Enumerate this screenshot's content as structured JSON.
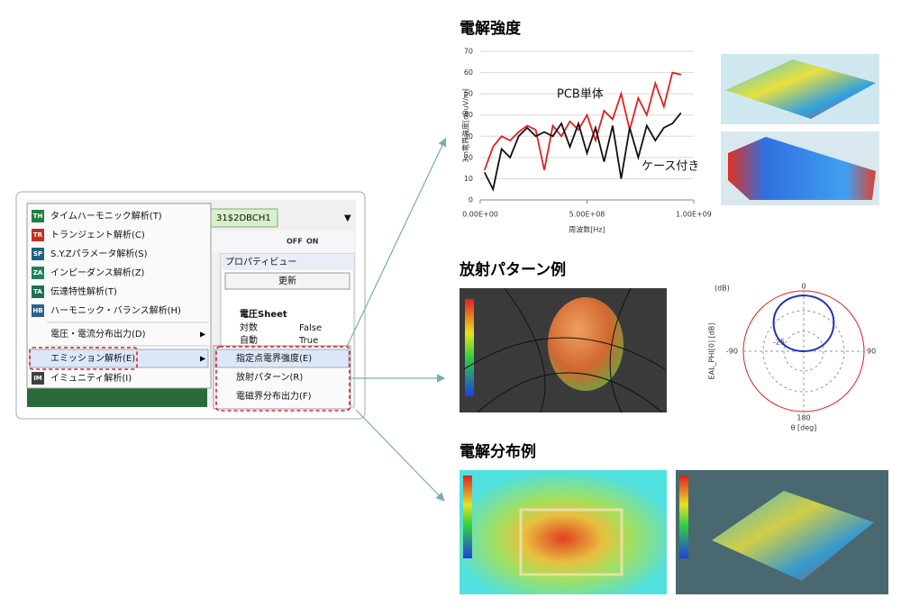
{
  "sections": {
    "field_strength": "電解強度",
    "radiation": "放射パターン例",
    "distribution": "電解分布例"
  },
  "menu": {
    "items": [
      {
        "icon": "TH",
        "label": "タイムハーモニック解析(T)"
      },
      {
        "icon": "TR",
        "label": "トランジェント解析(C)"
      },
      {
        "icon": "SP",
        "label": "S.Y.Zパラメータ解析(S)"
      },
      {
        "icon": "ZA",
        "label": "インピーダンス解析(Z)"
      },
      {
        "icon": "TA",
        "label": "伝達特性解析(T)"
      },
      {
        "icon": "HB",
        "label": "ハーモニック・バランス解析(H)"
      },
      {
        "label": "電圧・電流分布出力(D)"
      },
      {
        "label": "エミッション解析(E)"
      },
      {
        "icon": "IM",
        "label": "イミュニティ解析(I)"
      }
    ],
    "submenu": [
      "指定点電界強度(E)",
      "放射パターン(R)",
      "電磁界分布出力(F)"
    ]
  },
  "background": {
    "tab": "31$2DBCH1",
    "toolbar": [
      "OFF",
      "ON"
    ],
    "panel_title": "プロパティビュー",
    "update_button": "更新",
    "sheet": "電圧Sheet",
    "properties": [
      [
        "対数",
        "False"
      ],
      [
        "自動",
        "True"
      ]
    ]
  },
  "chart_data": {
    "type": "line",
    "y_label": "3m電界強度[dBuV/m]",
    "x_label": "周波数[Hz]",
    "x": [
      20000000,
      60000000,
      100000000,
      140000000,
      180000000,
      220000000,
      260000000,
      300000000,
      340000000,
      380000000,
      420000000,
      460000000,
      500000000,
      540000000,
      580000000,
      620000000,
      660000000,
      700000000,
      740000000,
      780000000,
      820000000,
      860000000,
      900000000,
      940000000
    ],
    "series": [
      {
        "name": "PCB単体",
        "color": "#e02020",
        "values": [
          14,
          25,
          30,
          28,
          32,
          35,
          33,
          14,
          35,
          30,
          37,
          33,
          40,
          28,
          42,
          38,
          50,
          33,
          48,
          40,
          55,
          44,
          60,
          59
        ]
      },
      {
        "name": "ケース付き",
        "color": "#111111",
        "values": [
          13,
          5,
          24,
          20,
          30,
          34,
          30,
          32,
          30,
          36,
          25,
          36,
          22,
          34,
          18,
          35,
          10,
          34,
          20,
          35,
          28,
          34,
          36,
          41
        ]
      }
    ],
    "xlim": [
      0,
      1000000000
    ],
    "xticks": [
      {
        "value": 0,
        "label": "0.00E+00"
      },
      {
        "value": 500000000,
        "label": "5.00E+08"
      },
      {
        "value": 1000000000,
        "label": "1.00E+09"
      }
    ],
    "ylim": [
      0,
      70
    ],
    "yticks": [
      0,
      10,
      20,
      30,
      40,
      50,
      60,
      70
    ],
    "grid": true
  },
  "polar": {
    "unit": "(dB)",
    "top": "0",
    "ring": "-25",
    "left": "-90",
    "right": "90",
    "bottom": "180",
    "x_label": "θ [deg]",
    "y_label": "EAL_PHI[0] [dB]"
  }
}
